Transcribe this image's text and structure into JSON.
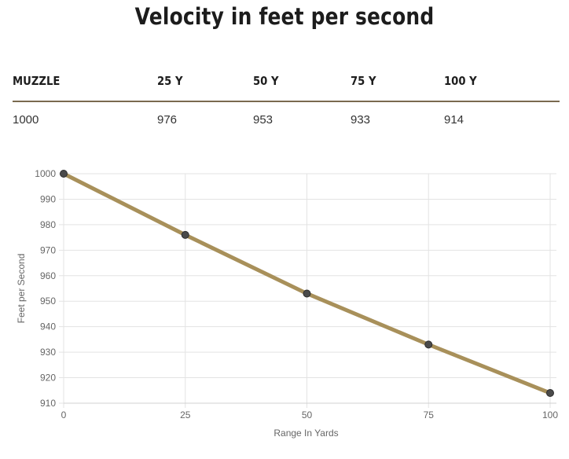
{
  "title": "Velocity in feet per second",
  "table": {
    "headers": [
      "MUZZLE",
      "25 Y",
      "50 Y",
      "75 Y",
      "100 Y"
    ],
    "values": [
      "1000",
      "976",
      "953",
      "933",
      "914"
    ]
  },
  "chart_data": {
    "type": "line",
    "x": [
      0,
      25,
      50,
      75,
      100
    ],
    "series": [
      {
        "values": [
          1000,
          976,
          953,
          933,
          914
        ]
      }
    ],
    "xlabel": "Range In Yards",
    "ylabel": "Feet per Second",
    "xlim": [
      0,
      100
    ],
    "ylim": [
      910,
      1000
    ],
    "xticks": [
      0,
      25,
      50,
      75,
      100
    ],
    "yticks": [
      910,
      920,
      930,
      940,
      950,
      960,
      970,
      980,
      990,
      1000
    ],
    "grid": true,
    "line_color": "#a8905a",
    "marker_color": "#4a4a4a"
  }
}
